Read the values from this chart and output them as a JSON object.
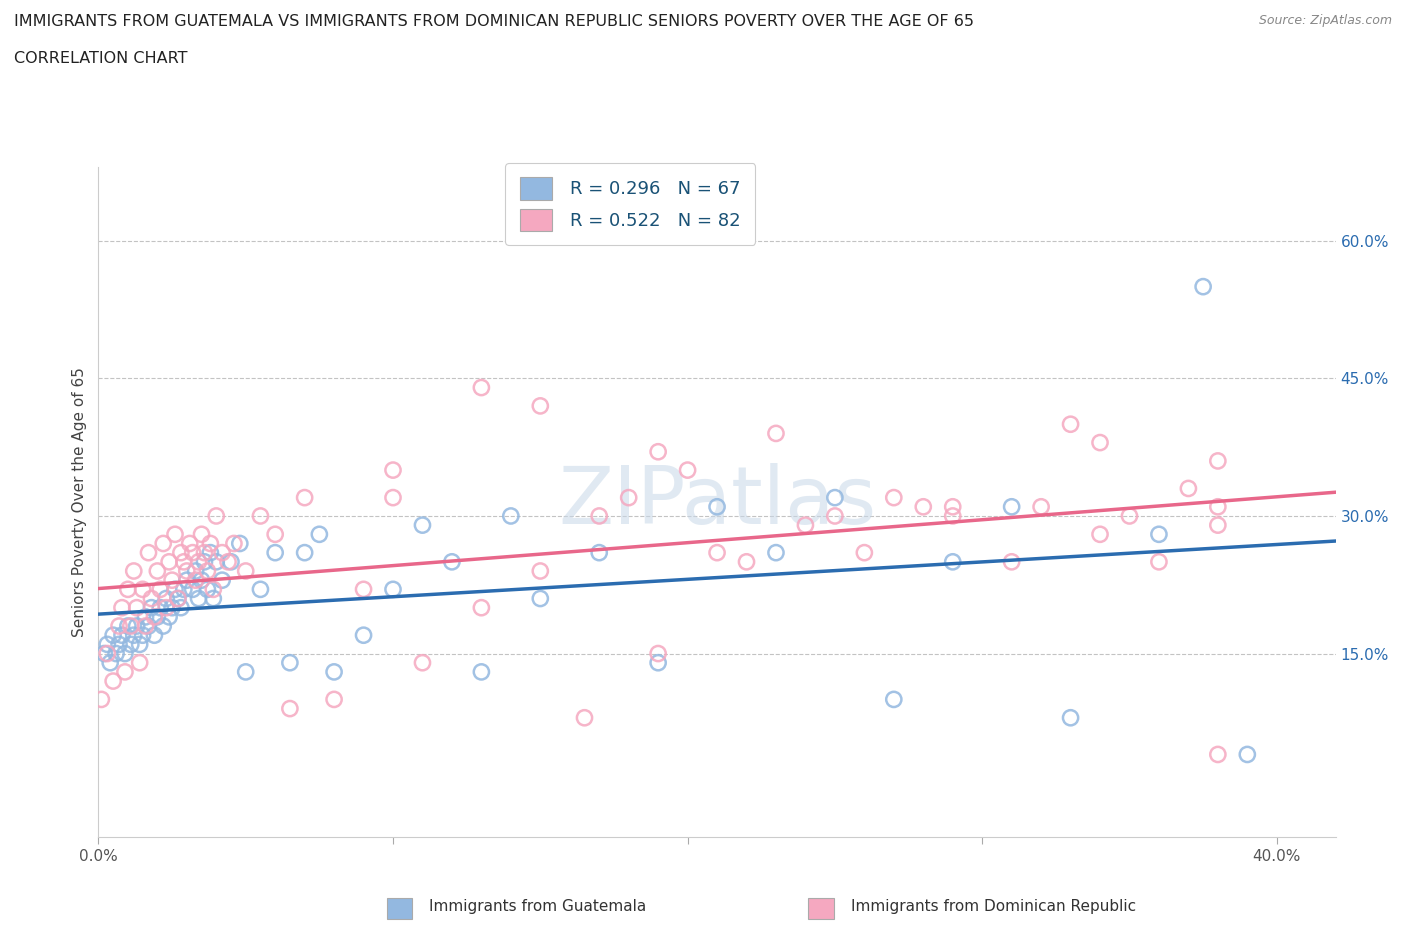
{
  "title_line1": "IMMIGRANTS FROM GUATEMALA VS IMMIGRANTS FROM DOMINICAN REPUBLIC SENIORS POVERTY OVER THE AGE OF 65",
  "title_line2": "CORRELATION CHART",
  "source_text": "Source: ZipAtlas.com",
  "ylabel": "Seniors Poverty Over the Age of 65",
  "xlim": [
    0.0,
    0.42
  ],
  "ylim": [
    -0.05,
    0.68
  ],
  "xticks": [
    0.0,
    0.1,
    0.2,
    0.3,
    0.4
  ],
  "xtick_labels": [
    "0.0%",
    "",
    "",
    "",
    "40.0%"
  ],
  "ytick_positions": [
    0.15,
    0.3,
    0.45,
    0.6
  ],
  "ytick_labels": [
    "15.0%",
    "30.0%",
    "45.0%",
    "60.0%"
  ],
  "hlines": [
    0.15,
    0.3,
    0.45,
    0.6
  ],
  "legend_labels": [
    "Immigrants from Guatemala",
    "Immigrants from Dominican Republic"
  ],
  "blue_color": "#93b8e0",
  "pink_color": "#f5a8c0",
  "blue_line_color": "#2b6cb0",
  "pink_line_color": "#e8678a",
  "legend_text_color": "#1a5276",
  "blue_scatter_x": [
    0.002,
    0.003,
    0.004,
    0.005,
    0.006,
    0.007,
    0.008,
    0.009,
    0.01,
    0.011,
    0.012,
    0.013,
    0.014,
    0.015,
    0.016,
    0.017,
    0.018,
    0.019,
    0.02,
    0.021,
    0.022,
    0.023,
    0.024,
    0.025,
    0.026,
    0.027,
    0.028,
    0.029,
    0.03,
    0.032,
    0.033,
    0.034,
    0.035,
    0.036,
    0.037,
    0.038,
    0.039,
    0.04,
    0.042,
    0.045,
    0.048,
    0.05,
    0.055,
    0.06,
    0.065,
    0.07,
    0.075,
    0.08,
    0.09,
    0.1,
    0.11,
    0.12,
    0.13,
    0.14,
    0.15,
    0.17,
    0.19,
    0.21,
    0.23,
    0.25,
    0.27,
    0.29,
    0.31,
    0.33,
    0.36,
    0.375,
    0.39
  ],
  "blue_scatter_y": [
    0.15,
    0.16,
    0.14,
    0.17,
    0.15,
    0.16,
    0.17,
    0.15,
    0.18,
    0.16,
    0.17,
    0.18,
    0.16,
    0.17,
    0.19,
    0.18,
    0.2,
    0.17,
    0.19,
    0.2,
    0.18,
    0.21,
    0.19,
    0.2,
    0.22,
    0.21,
    0.2,
    0.22,
    0.23,
    0.22,
    0.24,
    0.21,
    0.23,
    0.25,
    0.22,
    0.26,
    0.21,
    0.25,
    0.23,
    0.25,
    0.27,
    0.13,
    0.22,
    0.26,
    0.14,
    0.26,
    0.28,
    0.13,
    0.17,
    0.22,
    0.29,
    0.25,
    0.13,
    0.3,
    0.21,
    0.26,
    0.14,
    0.31,
    0.26,
    0.32,
    0.1,
    0.25,
    0.31,
    0.08,
    0.28,
    0.55,
    0.04
  ],
  "pink_scatter_x": [
    0.001,
    0.003,
    0.005,
    0.007,
    0.008,
    0.009,
    0.01,
    0.011,
    0.012,
    0.013,
    0.014,
    0.015,
    0.016,
    0.017,
    0.018,
    0.019,
    0.02,
    0.021,
    0.022,
    0.023,
    0.024,
    0.025,
    0.026,
    0.027,
    0.028,
    0.029,
    0.03,
    0.031,
    0.032,
    0.033,
    0.034,
    0.035,
    0.036,
    0.037,
    0.038,
    0.039,
    0.04,
    0.042,
    0.044,
    0.046,
    0.05,
    0.055,
    0.06,
    0.065,
    0.07,
    0.08,
    0.09,
    0.1,
    0.11,
    0.13,
    0.15,
    0.17,
    0.19,
    0.21,
    0.23,
    0.25,
    0.27,
    0.29,
    0.31,
    0.33,
    0.35,
    0.37,
    0.38,
    0.38,
    0.38,
    0.36,
    0.34,
    0.32,
    0.29,
    0.26,
    0.22,
    0.18,
    0.13,
    0.1,
    0.15,
    0.19,
    0.24,
    0.28,
    0.34,
    0.38,
    0.2,
    0.165
  ],
  "pink_scatter_y": [
    0.1,
    0.15,
    0.12,
    0.18,
    0.2,
    0.13,
    0.22,
    0.18,
    0.24,
    0.2,
    0.14,
    0.22,
    0.18,
    0.26,
    0.21,
    0.19,
    0.24,
    0.22,
    0.27,
    0.2,
    0.25,
    0.23,
    0.28,
    0.21,
    0.26,
    0.25,
    0.24,
    0.27,
    0.26,
    0.23,
    0.25,
    0.28,
    0.26,
    0.24,
    0.27,
    0.22,
    0.3,
    0.26,
    0.25,
    0.27,
    0.24,
    0.3,
    0.28,
    0.09,
    0.32,
    0.1,
    0.22,
    0.32,
    0.14,
    0.44,
    0.42,
    0.3,
    0.37,
    0.26,
    0.39,
    0.3,
    0.32,
    0.31,
    0.25,
    0.4,
    0.3,
    0.33,
    0.04,
    0.31,
    0.29,
    0.25,
    0.38,
    0.31,
    0.3,
    0.26,
    0.25,
    0.32,
    0.2,
    0.35,
    0.24,
    0.15,
    0.29,
    0.31,
    0.28,
    0.36,
    0.35,
    0.08
  ]
}
